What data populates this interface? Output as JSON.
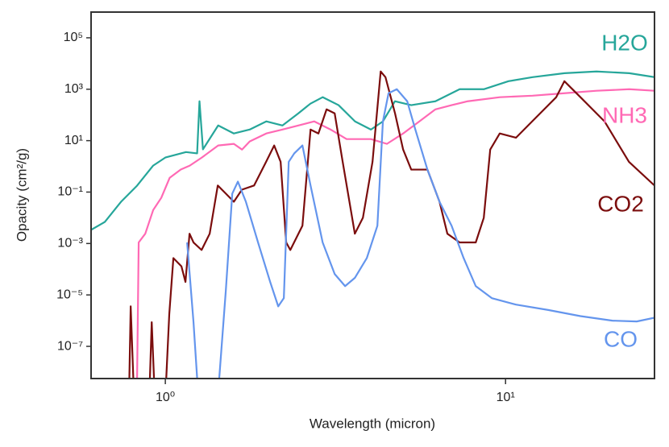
{
  "chart_data": {
    "type": "line",
    "xlabel": "Wavelength (micron)",
    "ylabel": "Opacity (cm²/g)",
    "xscale": "log",
    "yscale": "log",
    "xlim": [
      0.605,
      27.4
    ],
    "ylim": [
      5.6e-09,
      1000000
    ],
    "xticks": [
      {
        "value": 1,
        "label": "10⁰"
      },
      {
        "value": 10,
        "label": "10¹"
      }
    ],
    "yticks": [
      {
        "value": 100000,
        "label": "10⁵"
      },
      {
        "value": 1000,
        "label": "10³"
      },
      {
        "value": 10,
        "label": "10¹"
      },
      {
        "value": 0.1,
        "label": "10⁻¹"
      },
      {
        "value": 0.001,
        "label": "10⁻³"
      },
      {
        "value": 1e-05,
        "label": "10⁻⁵"
      },
      {
        "value": 1e-07,
        "label": "10⁻⁷"
      }
    ],
    "series": [
      {
        "name": "H2O",
        "color": "#26a69a",
        "x": [
          0.605,
          0.664,
          0.741,
          0.826,
          0.921,
          1.0,
          1.15,
          1.24,
          1.26,
          1.29,
          1.43,
          1.59,
          1.77,
          1.98,
          2.21,
          2.46,
          2.67,
          2.9,
          3.23,
          3.61,
          4.02,
          4.36,
          4.73,
          5.28,
          6.22,
          7.33,
          8.63,
          10.2,
          12.0,
          14.9,
          18.5,
          23.1,
          27.4
        ],
        "values": [
          0.0034,
          0.0069,
          0.042,
          0.178,
          1.07,
          2.2,
          3.6,
          3.2,
          340,
          4.6,
          39,
          19,
          27,
          56,
          39,
          115,
          275,
          490,
          240,
          56,
          27,
          56,
          340,
          240,
          340,
          1000,
          1000,
          2050,
          2950,
          4200,
          4900,
          4200,
          2950
        ]
      },
      {
        "name": "NH3",
        "color": "#ff69b4",
        "x": [
          0.826,
          0.835,
          0.873,
          0.921,
          0.973,
          1.03,
          1.11,
          1.18,
          1.28,
          1.43,
          1.59,
          1.68,
          1.77,
          1.98,
          2.21,
          2.46,
          2.74,
          3.06,
          3.41,
          4.02,
          4.48,
          5.0,
          5.58,
          6.22,
          6.94,
          7.74,
          9.62,
          12.0,
          14.9,
          18.5,
          23.1,
          27.4
        ],
        "values": [
          5.6e-09,
          0.0011,
          0.0024,
          0.02,
          0.06,
          0.36,
          0.75,
          1.07,
          2.2,
          6.5,
          7.5,
          4.5,
          9.3,
          19,
          27,
          39,
          56,
          27,
          11.5,
          11.5,
          7.5,
          19,
          56,
          165,
          240,
          340,
          490,
          560,
          700,
          870,
          1000,
          870
        ]
      },
      {
        "name": "CO2",
        "color": "#7b0d0d",
        "x": [
          0.782,
          0.791,
          0.809,
          0.897,
          0.912,
          0.931,
          1.0,
          1.027,
          1.056,
          1.115,
          1.146,
          1.178,
          1.21,
          1.278,
          1.35,
          1.426,
          1.506,
          1.59,
          1.679,
          1.823,
          1.978,
          2.089,
          2.182,
          2.266,
          2.33,
          2.529,
          2.672,
          2.818,
          2.978,
          3.146,
          3.321,
          3.606,
          3.808,
          4.064,
          4.295,
          4.436,
          4.733,
          5.0,
          5.282,
          5.893,
          6.396,
          6.745,
          7.328,
          8.173,
          8.63,
          9.014,
          9.614,
          10.73,
          11.97,
          14.09,
          14.89,
          16.6,
          19.54,
          23.05,
          27.4
        ],
        "values": [
          1e-09,
          3.6e-06,
          1e-09,
          1e-09,
          8.7e-07,
          1e-09,
          1e-09,
          1.8e-06,
          0.00027,
          0.00013,
          3.2e-05,
          0.0024,
          0.0011,
          0.00056,
          0.0024,
          0.18,
          0.087,
          0.042,
          0.124,
          0.18,
          1.5,
          6.5,
          1.5,
          0.0011,
          0.00056,
          0.0049,
          27,
          19,
          165,
          115,
          1.5,
          0.0024,
          0.01,
          1.5,
          4900,
          2950,
          115,
          4.5,
          0.75,
          0.75,
          0.042,
          0.0024,
          0.0011,
          0.0011,
          0.01,
          4.5,
          19,
          13,
          56,
          490,
          2050,
          490,
          56,
          1.5,
          0.18
        ]
      },
      {
        "name": "CO",
        "color": "#6495ed",
        "x": [
          1.159,
          1.21,
          1.251,
          null,
          1.426,
          1.506,
          1.573,
          1.634,
          1.725,
          1.873,
          2.033,
          2.147,
          2.23,
          2.305,
          2.393,
          2.529,
          2.672,
          2.9,
          3.146,
          3.376,
          3.606,
          3.91,
          4.2,
          4.36,
          4.53,
          4.79,
          5.14,
          5.43,
          5.893,
          6.396,
          6.94,
          7.53,
          8.173,
          9.11,
          10.73,
          13.35,
          16.6,
          20.6,
          24.3,
          27.4
        ],
        "values": [
          0.0011,
          8.7e-07,
          1e-09,
          null,
          1e-09,
          1.5e-05,
          0.087,
          0.255,
          0.042,
          0.0011,
          3.2e-05,
          3.6e-06,
          7.5e-06,
          1.5,
          3.2,
          6.5,
          0.18,
          0.0011,
          6.5e-05,
          2.2e-05,
          4.6e-05,
          0.00027,
          0.0049,
          56,
          700,
          1000,
          340,
          27,
          0.75,
          0.042,
          0.0049,
          0.00027,
          2.2e-05,
          7.5e-06,
          4.2e-06,
          2.6e-06,
          1.5e-06,
          1e-06,
          9.3e-07,
          1.3e-06
        ]
      }
    ]
  }
}
